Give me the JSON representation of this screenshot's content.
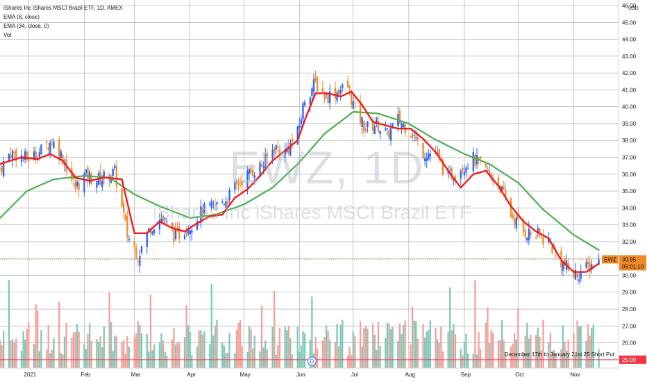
{
  "legend": {
    "symbol_line": "iShares Inc iShares MSCI Brazil ETF, 1D, AMEX",
    "ema_fast": "EMA (8, close)",
    "ema_slow": "EMA (34, close, 0)",
    "volume": "Vol"
  },
  "watermark": {
    "ticker": "EWZ, 1D",
    "name": "iShares Inc iShares MSCI Brazil ETF"
  },
  "colors": {
    "background": "#ffffff",
    "grid": "#9aa0aa",
    "up": "#2962ff",
    "down": "#f08a24",
    "vol_up": "#7ec9b8",
    "vol_down": "#f2a19b",
    "ema_fast": "#f21b1b",
    "ema_slow": "#4caf50",
    "price_tag": "#f08a24",
    "alert_line": "#f23645"
  },
  "chart_data": {
    "type": "candlestick",
    "title": "iShares Inc iShares MSCI Brazil ETF, 1D, AMEX",
    "currency": "USD",
    "yaxis": {
      "min": 24.5,
      "max": 46,
      "ticks": [
        "46.00",
        "45.00",
        "44.00",
        "43.00",
        "42.00",
        "41.00",
        "40.00",
        "39.00",
        "38.00",
        "37.00",
        "36.00",
        "35.00",
        "34.00",
        "33.00",
        "32.00",
        "31.00",
        "30.00",
        "29.00",
        "28.00",
        "27.00",
        "26.00",
        "25.00"
      ]
    },
    "xaxis": {
      "range": [
        "2020-12-16",
        "2021-11-26"
      ],
      "labels": [
        {
          "date": "2021-01-01",
          "text": "2021"
        },
        {
          "date": "2021-02-01",
          "text": "Feb"
        },
        {
          "date": "2021-03-01",
          "text": "Mar"
        },
        {
          "date": "2021-04-01",
          "text": "Apr"
        },
        {
          "date": "2021-05-01",
          "text": "May"
        },
        {
          "date": "2021-06-01",
          "text": "Jun"
        },
        {
          "date": "2021-07-01",
          "text": "Jul"
        },
        {
          "date": "2021-08-01",
          "text": "Aug"
        },
        {
          "date": "2021-09-01",
          "text": "Sep"
        },
        {
          "date": "2021-10-01",
          "text": "Oct"
        },
        {
          "date": "2021-11-01",
          "text": "Nov"
        }
      ]
    },
    "close_path": [
      [
        "2020-12-16",
        36.3
      ],
      [
        "2020-12-22",
        37.3
      ],
      [
        "2020-12-31",
        36.9
      ],
      [
        "2021-01-08",
        37.4
      ],
      [
        "2021-01-14",
        38.0
      ],
      [
        "2021-01-20",
        37.0
      ],
      [
        "2021-01-27",
        35.2
      ],
      [
        "2021-02-01",
        35.9
      ],
      [
        "2021-02-10",
        35.7
      ],
      [
        "2021-02-18",
        36.1
      ],
      [
        "2021-02-25",
        32.4
      ],
      [
        "2021-03-03",
        31.2
      ],
      [
        "2021-03-10",
        32.9
      ],
      [
        "2021-03-16",
        33.4
      ],
      [
        "2021-03-24",
        32.3
      ],
      [
        "2021-04-01",
        33.0
      ],
      [
        "2021-04-08",
        33.8
      ],
      [
        "2021-04-15",
        34.1
      ],
      [
        "2021-04-22",
        34.6
      ],
      [
        "2021-04-29",
        35.6
      ],
      [
        "2021-05-06",
        36.2
      ],
      [
        "2021-05-12",
        36.6
      ],
      [
        "2021-05-18",
        37.6
      ],
      [
        "2021-05-24",
        37.3
      ],
      [
        "2021-05-31",
        38.4
      ],
      [
        "2021-06-04",
        40.5
      ],
      [
        "2021-06-10",
        41.4
      ],
      [
        "2021-06-16",
        40.6
      ],
      [
        "2021-06-22",
        40.9
      ],
      [
        "2021-06-28",
        41.2
      ],
      [
        "2021-07-02",
        39.8
      ],
      [
        "2021-07-08",
        38.7
      ],
      [
        "2021-07-14",
        39.0
      ],
      [
        "2021-07-20",
        38.3
      ],
      [
        "2021-07-26",
        39.2
      ],
      [
        "2021-08-02",
        38.6
      ],
      [
        "2021-08-09",
        37.3
      ],
      [
        "2021-08-16",
        37.2
      ],
      [
        "2021-08-23",
        35.8
      ],
      [
        "2021-08-30",
        36.4
      ],
      [
        "2021-09-06",
        36.9
      ],
      [
        "2021-09-13",
        36.2
      ],
      [
        "2021-09-20",
        35.5
      ],
      [
        "2021-09-27",
        33.6
      ],
      [
        "2021-10-04",
        32.6
      ],
      [
        "2021-10-11",
        32.4
      ],
      [
        "2021-10-18",
        32.0
      ],
      [
        "2021-10-25",
        30.8
      ],
      [
        "2021-11-01",
        30.0
      ],
      [
        "2021-11-08",
        30.4
      ],
      [
        "2021-11-15",
        30.95
      ]
    ],
    "ema8": [
      [
        "2020-12-16",
        36.6
      ],
      [
        "2020-12-28",
        37.0
      ],
      [
        "2021-01-06",
        36.9
      ],
      [
        "2021-01-13",
        37.2
      ],
      [
        "2021-01-20",
        36.8
      ],
      [
        "2021-01-27",
        35.8
      ],
      [
        "2021-02-04",
        35.6
      ],
      [
        "2021-02-12",
        35.8
      ],
      [
        "2021-02-22",
        35.7
      ],
      [
        "2021-03-01",
        32.5
      ],
      [
        "2021-03-08",
        32.5
      ],
      [
        "2021-03-15",
        33.2
      ],
      [
        "2021-03-22",
        32.8
      ],
      [
        "2021-03-29",
        32.6
      ],
      [
        "2021-04-05",
        33.1
      ],
      [
        "2021-04-12",
        33.5
      ],
      [
        "2021-04-19",
        33.6
      ],
      [
        "2021-04-26",
        34.6
      ],
      [
        "2021-05-03",
        35.1
      ],
      [
        "2021-05-10",
        35.9
      ],
      [
        "2021-05-17",
        36.8
      ],
      [
        "2021-05-24",
        37.4
      ],
      [
        "2021-05-31",
        38.0
      ],
      [
        "2021-06-04",
        39.2
      ],
      [
        "2021-06-10",
        40.8
      ],
      [
        "2021-06-17",
        40.8
      ],
      [
        "2021-06-24",
        40.6
      ],
      [
        "2021-06-30",
        40.9
      ],
      [
        "2021-07-06",
        40.1
      ],
      [
        "2021-07-12",
        39.1
      ],
      [
        "2021-07-19",
        38.9
      ],
      [
        "2021-07-26",
        38.7
      ],
      [
        "2021-08-02",
        38.7
      ],
      [
        "2021-08-09",
        38.1
      ],
      [
        "2021-08-16",
        37.3
      ],
      [
        "2021-08-23",
        36.2
      ],
      [
        "2021-08-30",
        35.2
      ],
      [
        "2021-09-06",
        36.0
      ],
      [
        "2021-09-13",
        36.2
      ],
      [
        "2021-09-20",
        35.3
      ],
      [
        "2021-09-27",
        34.1
      ],
      [
        "2021-10-04",
        33.2
      ],
      [
        "2021-10-11",
        32.6
      ],
      [
        "2021-10-18",
        32.2
      ],
      [
        "2021-10-25",
        30.9
      ],
      [
        "2021-11-01",
        30.2
      ],
      [
        "2021-11-08",
        30.2
      ],
      [
        "2021-11-15",
        30.7
      ]
    ],
    "ema34": [
      [
        "2020-12-16",
        33.4
      ],
      [
        "2020-12-31",
        35.0
      ],
      [
        "2021-01-15",
        35.7
      ],
      [
        "2021-02-01",
        35.9
      ],
      [
        "2021-02-15",
        35.8
      ],
      [
        "2021-03-01",
        34.8
      ],
      [
        "2021-03-15",
        34.1
      ],
      [
        "2021-04-01",
        33.4
      ],
      [
        "2021-04-15",
        33.6
      ],
      [
        "2021-05-01",
        34.2
      ],
      [
        "2021-05-17",
        35.2
      ],
      [
        "2021-06-01",
        36.7
      ],
      [
        "2021-06-15",
        38.4
      ],
      [
        "2021-07-01",
        39.7
      ],
      [
        "2021-07-15",
        39.6
      ],
      [
        "2021-08-01",
        39.0
      ],
      [
        "2021-08-15",
        38.1
      ],
      [
        "2021-09-01",
        37.2
      ],
      [
        "2021-09-15",
        36.6
      ],
      [
        "2021-10-01",
        35.5
      ],
      [
        "2021-10-15",
        33.9
      ],
      [
        "2021-11-01",
        32.4
      ],
      [
        "2021-11-15",
        31.5
      ]
    ],
    "last_price": {
      "value": 30.95,
      "label": "EWZ",
      "price_text": "30.95",
      "countdown": "05:01:10"
    },
    "alert_line": {
      "value": 25.0,
      "price_text": "25.00",
      "label": "December 17th to January 21st 25 Short Put"
    },
    "dividend_marker": {
      "date": "2021-06-08",
      "label": "D"
    }
  }
}
